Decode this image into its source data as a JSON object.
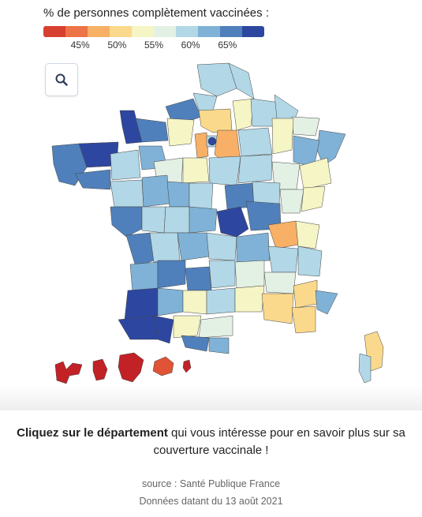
{
  "legend": {
    "title": "% de personnes complètement vaccinées :",
    "colors": [
      "#d7402f",
      "#ec7446",
      "#f7b066",
      "#fbd98c",
      "#f5f5c5",
      "#e3f0e4",
      "#b2d7e6",
      "#7fb2d6",
      "#4f80bb",
      "#2d47a0"
    ],
    "ticks": [
      {
        "label": "45%",
        "value": 45
      },
      {
        "label": "50%",
        "value": 50
      },
      {
        "label": "55%",
        "value": 55
      },
      {
        "label": "60%",
        "value": 60
      },
      {
        "label": "65%",
        "value": 65
      }
    ],
    "scale_min": 40,
    "scale_max": 70
  },
  "search": {
    "icon": "search-icon"
  },
  "instruction": {
    "bold": "Cliquez sur le département",
    "rest": " qui vous intéresse pour en savoir plus sur sa couverture vaccinale !"
  },
  "source": "source : Santé Publique France",
  "date": "Données datant du 13 août 2021"
}
